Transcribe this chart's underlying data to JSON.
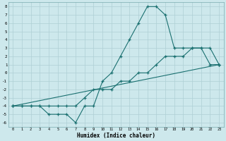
{
  "xlabel": "Humidex (Indice chaleur)",
  "xlim": [
    -0.5,
    23.5
  ],
  "ylim": [
    -6.5,
    8.5
  ],
  "xticks": [
    0,
    1,
    2,
    3,
    4,
    5,
    6,
    7,
    8,
    9,
    10,
    11,
    12,
    13,
    14,
    15,
    16,
    17,
    18,
    19,
    20,
    21,
    22,
    23
  ],
  "yticks": [
    -6,
    -5,
    -4,
    -3,
    -2,
    -1,
    0,
    1,
    2,
    3,
    4,
    5,
    6,
    7,
    8
  ],
  "background_color": "#cde8ec",
  "grid_color": "#aecfd4",
  "line_color": "#1a7070",
  "line1_x": [
    0,
    1,
    2,
    3,
    4,
    5,
    6,
    7,
    8,
    9,
    10,
    11,
    12,
    13,
    14,
    15,
    16,
    17,
    18,
    19,
    20,
    21,
    22,
    23
  ],
  "line1_y": [
    -4,
    -4,
    -4,
    -4,
    -5,
    -5,
    -5,
    -6,
    -4,
    -4,
    -1,
    0,
    2,
    4,
    6,
    8,
    8,
    7,
    3,
    3,
    3,
    3,
    1,
    1
  ],
  "line2_x": [
    0,
    1,
    2,
    3,
    4,
    5,
    6,
    7,
    8,
    9,
    10,
    11,
    12,
    13,
    14,
    15,
    16,
    17,
    18,
    19,
    20,
    21,
    22,
    23
  ],
  "line2_y": [
    -4,
    -4,
    -4,
    -4,
    -4,
    -4,
    -4,
    -4,
    -3,
    -2,
    -2,
    -2,
    -1,
    -1,
    0,
    0,
    1,
    2,
    2,
    2,
    3,
    3,
    3,
    1
  ],
  "line3_x": [
    0,
    23
  ],
  "line3_y": [
    -4,
    1
  ]
}
